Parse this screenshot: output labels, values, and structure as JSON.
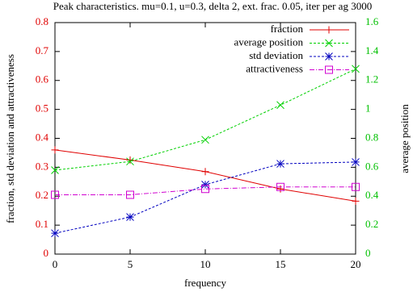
{
  "chart_data": {
    "type": "line",
    "title": "Peak characteristics. mu=0.1, u=0.3, delta 2, ext. frac. 0.05, iter per ag 3000",
    "xlabel": "frequency",
    "ylabel": "fraction, std deviation and attractiveness",
    "y2label": "average position",
    "x": [
      0,
      5,
      10,
      15,
      20
    ],
    "xlim": [
      0,
      20
    ],
    "xticks": [
      0,
      5,
      10,
      15,
      20
    ],
    "ylim": [
      0,
      0.8
    ],
    "yticks": [
      0,
      0.1,
      0.2,
      0.3,
      0.4,
      0.5,
      0.6,
      0.7,
      0.8
    ],
    "y2lim": [
      0,
      1.6
    ],
    "y2ticks": [
      0,
      0.2,
      0.4,
      0.6,
      0.8,
      1,
      1.2,
      1.4,
      1.6
    ],
    "ytick_color": "#e00000",
    "y2tick_color": "#00c000",
    "legend": "top-right",
    "series": [
      {
        "name": "fraction",
        "color": "#e00000",
        "marker": "plus",
        "dash": "solid",
        "values": [
          0.36,
          0.325,
          0.285,
          0.225,
          0.183
        ]
      },
      {
        "name": "average position",
        "color": "#00d000",
        "marker": "cross",
        "dash": "dashed",
        "axis": "y2",
        "values": [
          0.58,
          0.64,
          0.79,
          1.03,
          1.28
        ]
      },
      {
        "name": "std deviation",
        "color": "#0000c0",
        "marker": "star",
        "dash": "dashed",
        "values": [
          0.072,
          0.128,
          0.24,
          0.312,
          0.318
        ]
      },
      {
        "name": "attractiveness",
        "color": "#d000d0",
        "marker": "square",
        "dash": "dashdot",
        "values": [
          0.205,
          0.205,
          0.225,
          0.232,
          0.232
        ]
      }
    ]
  }
}
